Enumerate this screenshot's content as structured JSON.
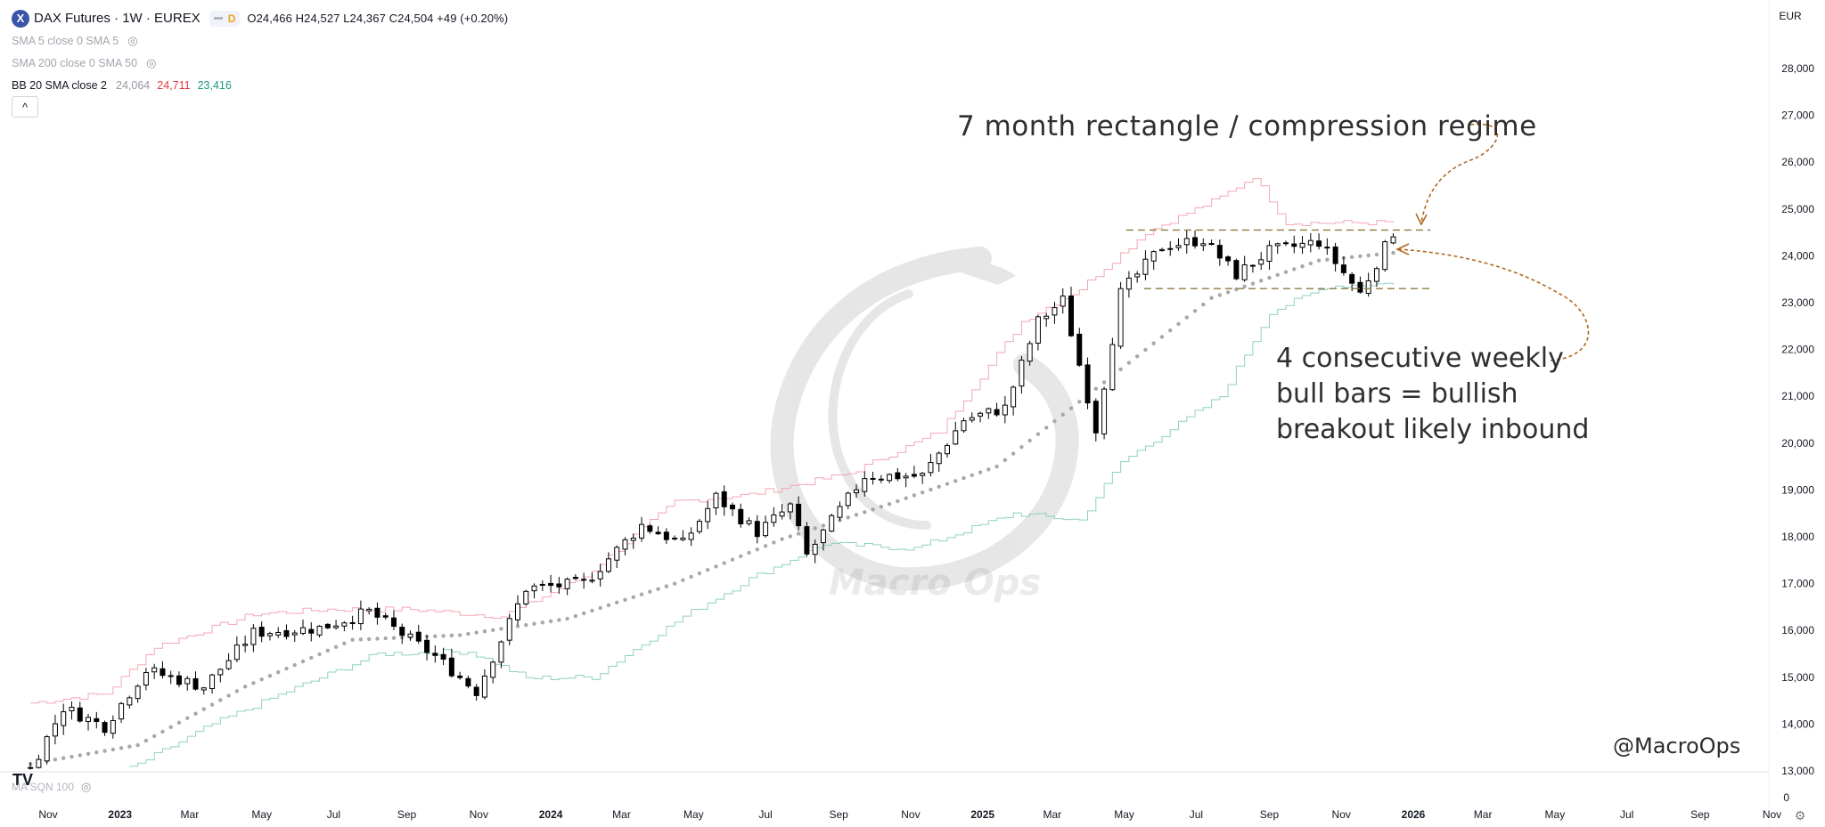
{
  "symbol": {
    "logo_letter": "X",
    "title": "DAX Futures · 1W · EUREX",
    "badge": "D",
    "ohlc": "O24,466  H24,527  L24,367  C24,504  +49 (+0.20%)"
  },
  "indicators": [
    {
      "label": "SMA 5 close 0 SMA 5",
      "eye_icon": "eye-off-icon"
    },
    {
      "label": "SMA 200 close 0 SMA 50",
      "eye_icon": "eye-off-icon"
    }
  ],
  "bollinger": {
    "label": "BB 20 SMA close 2",
    "basis": "24,064",
    "upper": "24,711",
    "lower": "23,416"
  },
  "collapse_icon": "^",
  "currency": "EUR",
  "subpane_label": "MA SQN 100",
  "subpane_zero": "0",
  "tv_logo": "TV",
  "annotations": {
    "top": "7 month rectangle / compression regime",
    "bottom": "4 consecutive weekly bull bars = bullish breakout likely inbound",
    "handle": "@MacroOps",
    "watermark": "Macro Ops"
  },
  "colors": {
    "bb_upper": "#f2a7b4",
    "bb_lower": "#8fd1c3",
    "sma": "#a8a8a8",
    "candle_up": "#ffffff",
    "candle_down": "#000000",
    "rectangle": "#8b7a3d",
    "arrow": "#b06a1f"
  },
  "chart_data": {
    "type": "candlestick",
    "title": "DAX Futures · 1W · EUREX",
    "xlabel": "",
    "ylabel": "",
    "ylim": [
      13000,
      28000
    ],
    "yticks": [
      "28,000",
      "27,000",
      "26,000",
      "25,000",
      "24,000",
      "23,000",
      "22,000",
      "21,000",
      "20,000",
      "19,000",
      "18,000",
      "17,000",
      "16,000",
      "15,000",
      "14,000",
      "13,000"
    ],
    "xticks": [
      {
        "label": "Nov",
        "date": "2022-11"
      },
      {
        "label": "2023",
        "date": "2023-01",
        "bold": true
      },
      {
        "label": "Mar",
        "date": "2023-03"
      },
      {
        "label": "May",
        "date": "2023-05"
      },
      {
        "label": "Jul",
        "date": "2023-07"
      },
      {
        "label": "Sep",
        "date": "2023-09"
      },
      {
        "label": "Nov",
        "date": "2023-11"
      },
      {
        "label": "2024",
        "date": "2024-01",
        "bold": true
      },
      {
        "label": "Mar",
        "date": "2024-03"
      },
      {
        "label": "May",
        "date": "2024-05"
      },
      {
        "label": "Jul",
        "date": "2024-07"
      },
      {
        "label": "Sep",
        "date": "2024-09"
      },
      {
        "label": "Nov",
        "date": "2024-11"
      },
      {
        "label": "2025",
        "date": "2025-01",
        "bold": true
      },
      {
        "label": "Mar",
        "date": "2025-03"
      },
      {
        "label": "May",
        "date": "2025-05"
      },
      {
        "label": "Jul",
        "date": "2025-07"
      },
      {
        "label": "Sep",
        "date": "2025-09"
      },
      {
        "label": "Nov",
        "date": "2025-11"
      },
      {
        "label": "2026",
        "date": "2026-01",
        "bold": true
      },
      {
        "label": "Mar",
        "date": "2026-03"
      },
      {
        "label": "May",
        "date": "2026-05"
      },
      {
        "label": "Jul",
        "date": "2026-07"
      },
      {
        "label": "Sep",
        "date": "2026-09"
      },
      {
        "label": "Nov",
        "date": "2026-11"
      }
    ],
    "price_anchors": [
      [
        "2022-10-17",
        13050
      ],
      [
        "2022-11-14",
        14350
      ],
      [
        "2022-12-19",
        13950
      ],
      [
        "2023-01-23",
        15150
      ],
      [
        "2023-03-13",
        14800
      ],
      [
        "2023-04-24",
        15950
      ],
      [
        "2023-06-19",
        16050
      ],
      [
        "2023-07-31",
        16400
      ],
      [
        "2023-09-25",
        15450
      ],
      [
        "2023-10-30",
        14700
      ],
      [
        "2023-12-11",
        16900
      ],
      [
        "2024-01-29",
        17000
      ],
      [
        "2024-03-18",
        18250
      ],
      [
        "2024-04-22",
        17850
      ],
      [
        "2024-05-20",
        18850
      ],
      [
        "2024-06-24",
        18100
      ],
      [
        "2024-07-22",
        18650
      ],
      [
        "2024-08-05",
        17600
      ],
      [
        "2024-09-23",
        19300
      ],
      [
        "2024-11-11",
        19300
      ],
      [
        "2024-12-16",
        20500
      ],
      [
        "2025-01-20",
        20750
      ],
      [
        "2025-02-17",
        22600
      ],
      [
        "2025-03-10",
        23050
      ],
      [
        "2025-04-07",
        20300
      ],
      [
        "2025-04-28",
        23200
      ],
      [
        "2025-06-02",
        24200
      ],
      [
        "2025-07-07",
        24350
      ],
      [
        "2025-08-04",
        23600
      ],
      [
        "2025-09-01",
        24100
      ],
      [
        "2025-10-13",
        24300
      ],
      [
        "2025-11-17",
        23200
      ],
      [
        "2025-12-15",
        24504
      ]
    ],
    "sma_anchors": [
      [
        "2022-10-17",
        13150
      ],
      [
        "2023-01-16",
        13550
      ],
      [
        "2023-04-17",
        14800
      ],
      [
        "2023-07-17",
        15800
      ],
      [
        "2023-10-16",
        15900
      ],
      [
        "2024-01-15",
        16250
      ],
      [
        "2024-04-15",
        17000
      ],
      [
        "2024-07-15",
        17950
      ],
      [
        "2024-10-14",
        18700
      ],
      [
        "2025-01-13",
        19500
      ],
      [
        "2025-04-14",
        21300
      ],
      [
        "2025-07-14",
        23100
      ],
      [
        "2025-10-13",
        23900
      ],
      [
        "2025-12-15",
        24064
      ]
    ],
    "bb_upper_anchors": [
      [
        "2022-10-17",
        14450
      ],
      [
        "2022-12-19",
        14650
      ],
      [
        "2023-01-30",
        15650
      ],
      [
        "2023-04-24",
        16350
      ],
      [
        "2023-06-26",
        16450
      ],
      [
        "2023-09-04",
        16450
      ],
      [
        "2023-11-20",
        16300
      ],
      [
        "2024-01-29",
        17150
      ],
      [
        "2024-04-15",
        18750
      ],
      [
        "2024-06-17",
        18900
      ],
      [
        "2024-09-09",
        19350
      ],
      [
        "2024-11-25",
        20250
      ],
      [
        "2025-02-03",
        22600
      ],
      [
        "2025-03-24",
        23300
      ],
      [
        "2025-05-19",
        24500
      ],
      [
        "2025-07-21",
        25250
      ],
      [
        "2025-08-18",
        25700
      ],
      [
        "2025-09-15",
        24700
      ],
      [
        "2025-12-15",
        24711
      ]
    ],
    "bb_lower_anchors": [
      [
        "2023-01-09",
        13050
      ],
      [
        "2023-03-20",
        14000
      ],
      [
        "2023-05-22",
        14700
      ],
      [
        "2023-08-07",
        15500
      ],
      [
        "2023-10-23",
        15550
      ],
      [
        "2023-12-11",
        14980
      ],
      [
        "2024-02-05",
        15000
      ],
      [
        "2024-04-22",
        16300
      ],
      [
        "2024-06-17",
        17100
      ],
      [
        "2024-08-19",
        17850
      ],
      [
        "2024-11-04",
        17750
      ],
      [
        "2025-01-27",
        18500
      ],
      [
        "2025-03-24",
        18350
      ],
      [
        "2025-04-28",
        19600
      ],
      [
        "2025-07-21",
        21000
      ],
      [
        "2025-09-01",
        22800
      ],
      [
        "2025-10-20",
        23350
      ],
      [
        "2025-12-15",
        23416
      ]
    ],
    "rectangle": {
      "top": 24550,
      "bottom": 23300,
      "start": "2025-05-05",
      "end": "2026-01-05"
    }
  }
}
